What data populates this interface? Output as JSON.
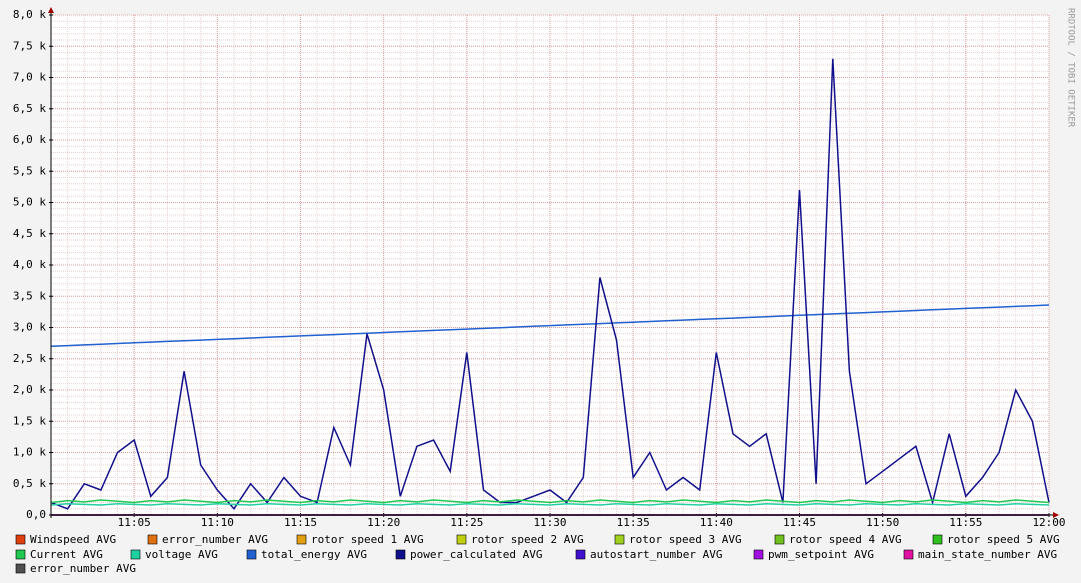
{
  "chart_data": {
    "type": "line",
    "watermark": "RRDTOOL / TOBI OETIKER",
    "xlim": [
      "11:00",
      "12:00"
    ],
    "xticks": [
      "11:05",
      "11:10",
      "11:15",
      "11:20",
      "11:25",
      "11:30",
      "11:35",
      "11:40",
      "11:45",
      "11:50",
      "11:55",
      "12:00"
    ],
    "ylim": [
      0,
      8000
    ],
    "yticks": [
      {
        "value": 0,
        "label": "0,0"
      },
      {
        "value": 500,
        "label": "0,5 k"
      },
      {
        "value": 1000,
        "label": "1,0 k"
      },
      {
        "value": 1500,
        "label": "1,5 k"
      },
      {
        "value": 2000,
        "label": "2,0 k"
      },
      {
        "value": 2500,
        "label": "2,5 k"
      },
      {
        "value": 3000,
        "label": "3,0 k"
      },
      {
        "value": 3500,
        "label": "3,5 k"
      },
      {
        "value": 4000,
        "label": "4,0 k"
      },
      {
        "value": 4500,
        "label": "4,5 k"
      },
      {
        "value": 5000,
        "label": "5,0 k"
      },
      {
        "value": 5500,
        "label": "5,5 k"
      },
      {
        "value": 6000,
        "label": "6,0 k"
      },
      {
        "value": 6500,
        "label": "6,5 k"
      },
      {
        "value": 7000,
        "label": "7,0 k"
      },
      {
        "value": 7500,
        "label": "7,5 k"
      },
      {
        "value": 8000,
        "label": "8,0 k"
      }
    ],
    "grid": true,
    "x": [
      "11:00",
      "11:01",
      "11:02",
      "11:03",
      "11:04",
      "11:05",
      "11:06",
      "11:07",
      "11:08",
      "11:09",
      "11:10",
      "11:11",
      "11:12",
      "11:13",
      "11:14",
      "11:15",
      "11:16",
      "11:17",
      "11:18",
      "11:19",
      "11:20",
      "11:21",
      "11:22",
      "11:23",
      "11:24",
      "11:25",
      "11:26",
      "11:27",
      "11:28",
      "11:29",
      "11:30",
      "11:31",
      "11:32",
      "11:33",
      "11:34",
      "11:35",
      "11:36",
      "11:37",
      "11:38",
      "11:39",
      "11:40",
      "11:41",
      "11:42",
      "11:43",
      "11:44",
      "11:45",
      "11:46",
      "11:47",
      "11:48",
      "11:49",
      "11:50",
      "11:51",
      "11:52",
      "11:53",
      "11:54",
      "11:55",
      "11:56",
      "11:57",
      "11:58",
      "11:59",
      "12:00"
    ],
    "series": [
      {
        "name": "Windspeed AVG",
        "color": "#e04010",
        "values": [
          0,
          0,
          0,
          0,
          0,
          0,
          0,
          0,
          0,
          0,
          0,
          0,
          0,
          0,
          0,
          0,
          0,
          0,
          0,
          0,
          0,
          0,
          0,
          0,
          0,
          0,
          0,
          0,
          0,
          0,
          0,
          0,
          0,
          0,
          0,
          0,
          0,
          0,
          0,
          0,
          0,
          0,
          0,
          0,
          0,
          0,
          0,
          0,
          0,
          0,
          0,
          0,
          0,
          0,
          0,
          0,
          0,
          0,
          0,
          0,
          0
        ]
      },
      {
        "name": "error_number AVG",
        "color": "#e07010",
        "values": [
          0,
          0,
          0,
          0,
          0,
          0,
          0,
          0,
          0,
          0,
          0,
          0,
          0,
          0,
          0,
          0,
          0,
          0,
          0,
          0,
          0,
          0,
          0,
          0,
          0,
          0,
          0,
          0,
          0,
          0,
          0,
          0,
          0,
          0,
          0,
          0,
          0,
          0,
          0,
          0,
          0,
          0,
          0,
          0,
          0,
          0,
          0,
          0,
          0,
          0,
          0,
          0,
          0,
          0,
          0,
          0,
          0,
          0,
          0,
          0,
          0
        ]
      },
      {
        "name": "rotor speed 1 AVG",
        "color": "#e0a010",
        "values": [
          0,
          0,
          0,
          0,
          0,
          0,
          0,
          0,
          0,
          0,
          0,
          0,
          0,
          0,
          0,
          0,
          0,
          0,
          0,
          0,
          0,
          0,
          0,
          0,
          0,
          0,
          0,
          0,
          0,
          0,
          0,
          0,
          0,
          0,
          0,
          0,
          0,
          0,
          0,
          0,
          0,
          0,
          0,
          0,
          0,
          0,
          0,
          0,
          0,
          0,
          0,
          0,
          0,
          0,
          0,
          0,
          0,
          0,
          0,
          0,
          0
        ]
      },
      {
        "name": "rotor speed 2 AVG",
        "color": "#c0d010",
        "values": [
          0,
          0,
          0,
          0,
          0,
          0,
          0,
          0,
          0,
          0,
          0,
          0,
          0,
          0,
          0,
          0,
          0,
          0,
          0,
          0,
          0,
          0,
          0,
          0,
          0,
          0,
          0,
          0,
          0,
          0,
          0,
          0,
          0,
          0,
          0,
          0,
          0,
          0,
          0,
          0,
          0,
          0,
          0,
          0,
          0,
          0,
          0,
          0,
          0,
          0,
          0,
          0,
          0,
          0,
          0,
          0,
          0,
          0,
          0,
          0,
          0
        ]
      },
      {
        "name": "rotor speed 3 AVG",
        "color": "#a0d020",
        "values": [
          0,
          0,
          0,
          0,
          0,
          0,
          0,
          0,
          0,
          0,
          0,
          0,
          0,
          0,
          0,
          0,
          0,
          0,
          0,
          0,
          0,
          0,
          0,
          0,
          0,
          0,
          0,
          0,
          0,
          0,
          0,
          0,
          0,
          0,
          0,
          0,
          0,
          0,
          0,
          0,
          0,
          0,
          0,
          0,
          0,
          0,
          0,
          0,
          0,
          0,
          0,
          0,
          0,
          0,
          0,
          0,
          0,
          0,
          0,
          0,
          0
        ]
      },
      {
        "name": "rotor speed 4 AVG",
        "color": "#70c020",
        "values": [
          0,
          0,
          0,
          0,
          0,
          0,
          0,
          0,
          0,
          0,
          0,
          0,
          0,
          0,
          0,
          0,
          0,
          0,
          0,
          0,
          0,
          0,
          0,
          0,
          0,
          0,
          0,
          0,
          0,
          0,
          0,
          0,
          0,
          0,
          0,
          0,
          0,
          0,
          0,
          0,
          0,
          0,
          0,
          0,
          0,
          0,
          0,
          0,
          0,
          0,
          0,
          0,
          0,
          0,
          0,
          0,
          0,
          0,
          0,
          0,
          0
        ]
      },
      {
        "name": "rotor speed 5 AVG",
        "color": "#30c020",
        "values": [
          0,
          0,
          0,
          0,
          0,
          0,
          0,
          0,
          0,
          0,
          0,
          0,
          0,
          0,
          0,
          0,
          0,
          0,
          0,
          0,
          0,
          0,
          0,
          0,
          0,
          0,
          0,
          0,
          0,
          0,
          0,
          0,
          0,
          0,
          0,
          0,
          0,
          0,
          0,
          0,
          0,
          0,
          0,
          0,
          0,
          0,
          0,
          0,
          0,
          0,
          0,
          0,
          0,
          0,
          0,
          0,
          0,
          0,
          0,
          0,
          0
        ]
      },
      {
        "name": "Current AVG",
        "color": "#20c850",
        "values": [
          200,
          230,
          210,
          240,
          220,
          200,
          230,
          210,
          240,
          220,
          200,
          230,
          210,
          240,
          220,
          200,
          230,
          210,
          240,
          220,
          200,
          230,
          210,
          240,
          220,
          200,
          230,
          210,
          240,
          220,
          200,
          230,
          210,
          240,
          220,
          200,
          230,
          210,
          240,
          220,
          200,
          230,
          210,
          240,
          220,
          200,
          230,
          210,
          240,
          220,
          200,
          230,
          210,
          240,
          220,
          200,
          230,
          210,
          240,
          220,
          200
        ]
      },
      {
        "name": "voltage AVG",
        "color": "#20d0a0",
        "values": [
          160,
          180,
          170,
          160,
          180,
          170,
          160,
          180,
          170,
          160,
          180,
          170,
          160,
          180,
          170,
          160,
          180,
          170,
          160,
          180,
          170,
          160,
          180,
          170,
          160,
          180,
          170,
          160,
          180,
          170,
          160,
          180,
          170,
          160,
          180,
          170,
          160,
          180,
          170,
          160,
          180,
          170,
          160,
          180,
          170,
          160,
          180,
          170,
          160,
          180,
          170,
          160,
          180,
          170,
          160,
          180,
          170,
          160,
          180,
          170,
          160
        ]
      },
      {
        "name": "total_energy AVG",
        "color": "#2060d0",
        "values": [
          2700,
          2711,
          2722,
          2733,
          2744,
          2755,
          2766,
          2777,
          2788,
          2799,
          2810,
          2821,
          2832,
          2843,
          2854,
          2865,
          2876,
          2887,
          2898,
          2909,
          2920,
          2931,
          2942,
          2953,
          2964,
          2975,
          2986,
          2997,
          3008,
          3019,
          3030,
          3041,
          3052,
          3063,
          3074,
          3085,
          3096,
          3107,
          3118,
          3129,
          3140,
          3151,
          3162,
          3173,
          3184,
          3195,
          3206,
          3217,
          3228,
          3239,
          3250,
          3261,
          3272,
          3283,
          3294,
          3305,
          3316,
          3327,
          3338,
          3349,
          3360
        ]
      },
      {
        "name": "power_calculated AVG",
        "color": "#10108c",
        "values": [
          200,
          100,
          500,
          400,
          1000,
          1200,
          300,
          600,
          2300,
          800,
          400,
          100,
          500,
          200,
          600,
          300,
          200,
          1400,
          800,
          2900,
          2000,
          300,
          1100,
          1200,
          700,
          2600,
          400,
          200,
          200,
          300,
          400,
          200,
          600,
          3800,
          2800,
          600,
          1000,
          400,
          600,
          400,
          2600,
          1300,
          1100,
          1300,
          200,
          5200,
          500,
          7300,
          2300,
          500,
          700,
          900,
          1100,
          200,
          1300,
          300,
          600,
          1000,
          2000,
          1500,
          200
        ]
      },
      {
        "name": "autostart_number AVG",
        "color": "#4010d0",
        "values": [
          0,
          0,
          0,
          0,
          0,
          0,
          0,
          0,
          0,
          0,
          0,
          0,
          0,
          0,
          0,
          0,
          0,
          0,
          0,
          0,
          0,
          0,
          0,
          0,
          0,
          0,
          0,
          0,
          0,
          0,
          0,
          0,
          0,
          0,
          0,
          0,
          0,
          0,
          0,
          0,
          0,
          0,
          0,
          0,
          0,
          0,
          0,
          0,
          0,
          0,
          0,
          0,
          0,
          0,
          0,
          0,
          0,
          0,
          0,
          0,
          0
        ]
      },
      {
        "name": "pwm_setpoint AVG",
        "color": "#a010e0",
        "values": [
          0,
          0,
          0,
          0,
          0,
          0,
          0,
          0,
          0,
          0,
          0,
          0,
          0,
          0,
          0,
          0,
          0,
          0,
          0,
          0,
          0,
          0,
          0,
          0,
          0,
          0,
          0,
          0,
          0,
          0,
          0,
          0,
          0,
          0,
          0,
          0,
          0,
          0,
          0,
          0,
          0,
          0,
          0,
          0,
          0,
          0,
          0,
          0,
          0,
          0,
          0,
          0,
          0,
          0,
          0,
          0,
          0,
          0,
          0,
          0,
          0
        ]
      },
      {
        "name": "main_state_number AVG",
        "color": "#e010a0",
        "values": [
          0,
          0,
          0,
          0,
          0,
          0,
          0,
          0,
          0,
          0,
          0,
          0,
          0,
          0,
          0,
          0,
          0,
          0,
          0,
          0,
          0,
          0,
          0,
          0,
          0,
          0,
          0,
          0,
          0,
          0,
          0,
          0,
          0,
          0,
          0,
          0,
          0,
          0,
          0,
          0,
          0,
          0,
          0,
          0,
          0,
          0,
          0,
          0,
          0,
          0,
          0,
          0,
          0,
          0,
          0,
          0,
          0,
          0,
          0,
          0,
          0
        ]
      },
      {
        "name": "error_number AVG",
        "color": "#505050",
        "values": [
          0,
          0,
          0,
          0,
          0,
          0,
          0,
          0,
          0,
          0,
          0,
          0,
          0,
          0,
          0,
          0,
          0,
          0,
          0,
          0,
          0,
          0,
          0,
          0,
          0,
          0,
          0,
          0,
          0,
          0,
          0,
          0,
          0,
          0,
          0,
          0,
          0,
          0,
          0,
          0,
          0,
          0,
          0,
          0,
          0,
          0,
          0,
          0,
          0,
          0,
          0,
          0,
          0,
          0,
          0,
          0,
          0,
          0,
          0,
          0,
          0
        ]
      }
    ]
  }
}
